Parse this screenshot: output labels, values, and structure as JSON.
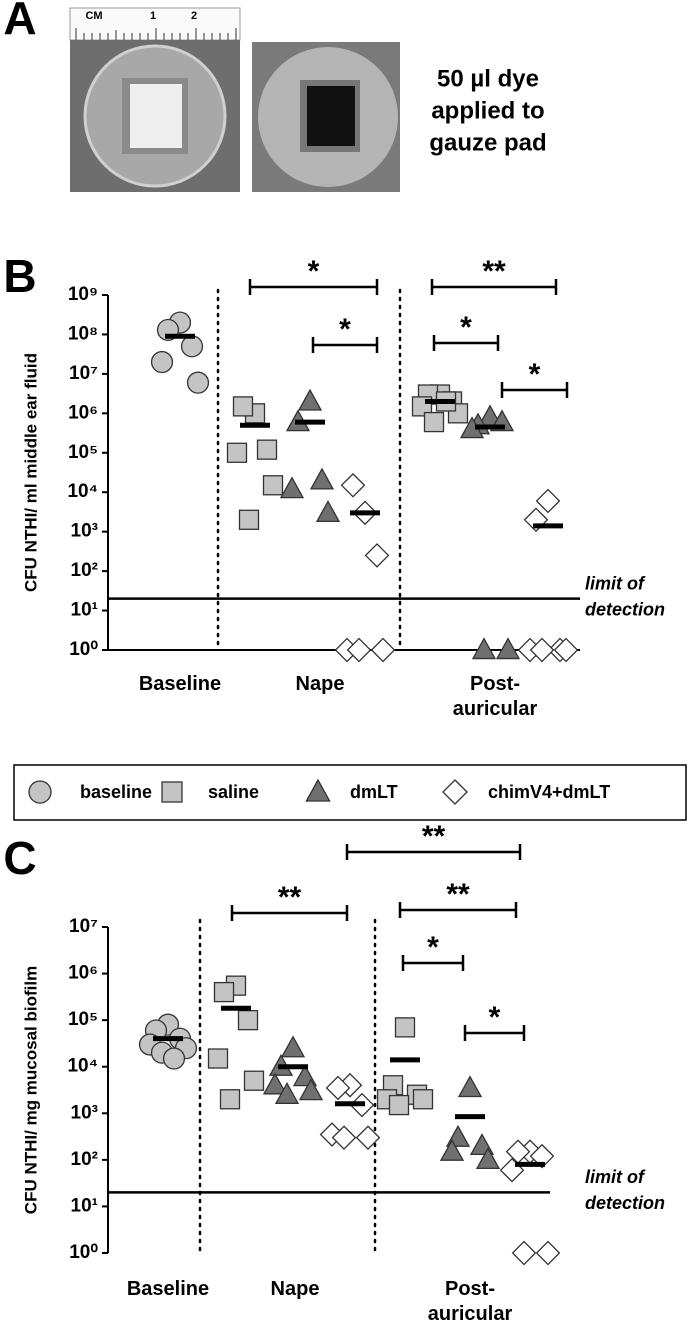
{
  "panel_a": {
    "label": "A",
    "ruler_labels": [
      "CM",
      "1",
      "2"
    ],
    "caption": [
      "50 µl dye",
      "applied to",
      "gauze pad"
    ]
  },
  "chart_data": [
    {
      "type": "scatter",
      "panel": "B",
      "y_label": "CFU  NTHI/ ml middle ear fluid",
      "log_scale": true,
      "x_axis_line": true,
      "categories": [
        "Baseline",
        "Nape",
        "Post-auricular"
      ],
      "ylim": [
        1,
        1000000000
      ],
      "yticks": [
        {
          "value": 1,
          "label": "10⁰"
        },
        {
          "value": 10,
          "label": "10¹"
        },
        {
          "value": 100,
          "label": "10²"
        },
        {
          "value": 1000,
          "label": "10³"
        },
        {
          "value": 10000,
          "label": "10⁴"
        },
        {
          "value": 100000,
          "label": "10⁵"
        },
        {
          "value": 1000000,
          "label": "10⁶"
        },
        {
          "value": 10000000,
          "label": "10⁷"
        },
        {
          "value": 100000000,
          "label": "10⁸"
        },
        {
          "value": 1000000000,
          "label": "10⁹"
        }
      ],
      "limit": 20,
      "limit_label": [
        "limit of",
        "detection"
      ],
      "significance": [
        "*",
        "*",
        "**",
        "*",
        "*"
      ],
      "series": [
        {
          "name": "baseline",
          "marker": "circle",
          "color": "#c4c4c4",
          "values": [
            [
              200000000,
              130000000,
              50000000,
              20000000,
              6000000
            ],
            [],
            []
          ],
          "means": [
            90000000,
            null,
            null
          ]
        },
        {
          "name": "saline",
          "marker": "square",
          "color": "#c4c4c4",
          "values": [
            [],
            [
              1000000,
              1500000,
              120000,
              100000,
              15000,
              2000
            ],
            [
              3000000,
              3000000,
              2000000,
              1500000,
              1000000,
              600000,
              2000000
            ]
          ],
          "means": [
            null,
            500000,
            2000000
          ]
        },
        {
          "name": "dmLT",
          "marker": "triangle",
          "color": "#707070",
          "values": [
            [],
            [
              2000000,
              600000,
              20000,
              12000,
              3000
            ],
            [
              800000,
              500000,
              600000,
              400000,
              1,
              1
            ]
          ],
          "means": [
            null,
            600000,
            450000
          ]
        },
        {
          "name": "chimV4+dmLT",
          "marker": "diamond",
          "color": "#ffffff",
          "values": [
            [],
            [
              3000,
              15000,
              250,
              1,
              1,
              1
            ],
            [
              6000,
              2000,
              1,
              1,
              1,
              1
            ]
          ],
          "means": [
            null,
            3000,
            1400
          ]
        }
      ]
    },
    {
      "type": "scatter",
      "panel": "C",
      "y_label": "CFU  NTHI/ mg mucosal biofilm",
      "log_scale": true,
      "x_axis_line": false,
      "categories": [
        "Baseline",
        "Nape",
        "Post-auricular"
      ],
      "ylim": [
        1,
        10000000
      ],
      "yticks": [
        {
          "value": 1,
          "label": "10⁰"
        },
        {
          "value": 10,
          "label": "10¹"
        },
        {
          "value": 100,
          "label": "10²"
        },
        {
          "value": 1000,
          "label": "10³"
        },
        {
          "value": 10000,
          "label": "10⁴"
        },
        {
          "value": 100000,
          "label": "10⁵"
        },
        {
          "value": 1000000,
          "label": "10⁶"
        },
        {
          "value": 10000000,
          "label": "10⁷"
        }
      ],
      "limit": 20,
      "limit_label": [
        "limit of",
        "detection"
      ],
      "significance": [
        "**",
        "**",
        "**",
        "*",
        "*"
      ],
      "series": [
        {
          "name": "baseline",
          "marker": "circle",
          "color": "#c4c4c4",
          "values": [
            [
              80000,
              60000,
              40000,
              30000,
              25000,
              20000,
              15000
            ],
            [],
            []
          ],
          "means": [
            40000,
            null,
            null
          ]
        },
        {
          "name": "saline",
          "marker": "square",
          "color": "#c4c4c4",
          "values": [
            [],
            [
              550000,
              400000,
              100000,
              15000,
              5000,
              2000
            ],
            [
              70000,
              4000,
              2500,
              2000,
              2000,
              1500
            ]
          ],
          "means": [
            null,
            180000,
            14000
          ]
        },
        {
          "name": "dmLT",
          "marker": "triangle",
          "color": "#707070",
          "values": [
            [],
            [
              25000,
              10000,
              6000,
              4000,
              3000,
              2500
            ],
            [
              3500,
              300,
              200,
              150,
              100
            ]
          ],
          "means": [
            null,
            10000,
            850
          ]
        },
        {
          "name": "chimV4+dmLT",
          "marker": "diamond",
          "color": "#ffffff",
          "values": [
            [],
            [
              4000,
              3500,
              1500,
              350,
              300,
              300
            ],
            [
              150,
              150,
              120,
              60,
              1,
              1
            ]
          ],
          "means": [
            null,
            1600,
            80
          ]
        }
      ]
    }
  ]
}
